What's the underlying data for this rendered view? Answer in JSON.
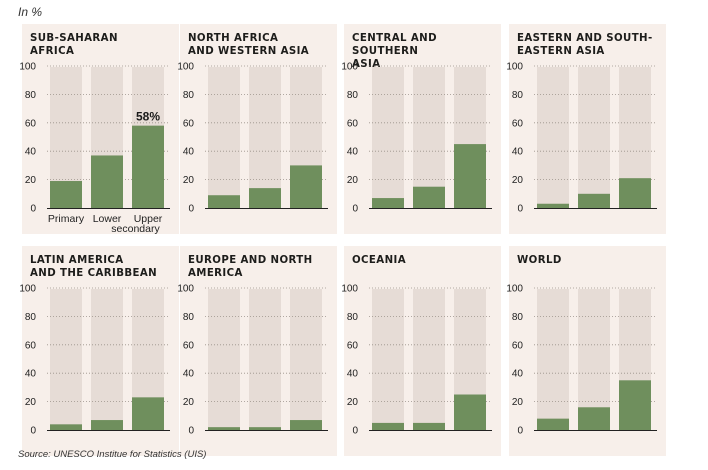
{
  "unit_label": "In %",
  "source": "Source: UNESCO Institue for Statistics (UIS)",
  "colors": {
    "panel_bg": "#f7efea",
    "track": "#e6dcd6",
    "bar": "#6f8f5d"
  },
  "panels": [
    {
      "title": [
        "Sub-Saharan",
        "Africa"
      ]
    },
    {
      "title": [
        "North Africa",
        "and Western Asia"
      ]
    },
    {
      "title": [
        "Central and Southern",
        "Asia"
      ]
    },
    {
      "title": [
        "Eastern and south-",
        "eastern Asia"
      ]
    },
    {
      "title": [
        "Latin America",
        "and the Caribbean"
      ]
    },
    {
      "title": [
        "Europe and North",
        "America"
      ]
    },
    {
      "title": [
        "Oceania"
      ]
    },
    {
      "title": [
        "World"
      ]
    }
  ],
  "chart_data": {
    "type": "bar",
    "categories": [
      "Primary",
      "Lower secondary",
      "Upper secondary"
    ],
    "category_labels": [
      "Primary",
      "Lower",
      "Upper",
      "secondary"
    ],
    "yticks": [
      0,
      20,
      40,
      60,
      80,
      100
    ],
    "ylim": [
      0,
      100
    ],
    "grid": true,
    "annotation": "58%",
    "series": [
      {
        "name": "Sub-Saharan Africa",
        "values": [
          19,
          37,
          58
        ]
      },
      {
        "name": "North Africa and Western Asia",
        "values": [
          9,
          14,
          30
        ]
      },
      {
        "name": "Central and Southern Asia",
        "values": [
          7,
          15,
          45
        ]
      },
      {
        "name": "Eastern and south-eastern Asia",
        "values": [
          3,
          10,
          21
        ]
      },
      {
        "name": "Latin America and the Caribbean",
        "values": [
          4,
          7,
          23
        ]
      },
      {
        "name": "Europe and North America",
        "values": [
          2,
          2,
          7
        ]
      },
      {
        "name": "Oceania",
        "values": [
          5,
          5,
          25
        ]
      },
      {
        "name": "World",
        "values": [
          8,
          16,
          35
        ]
      }
    ]
  }
}
